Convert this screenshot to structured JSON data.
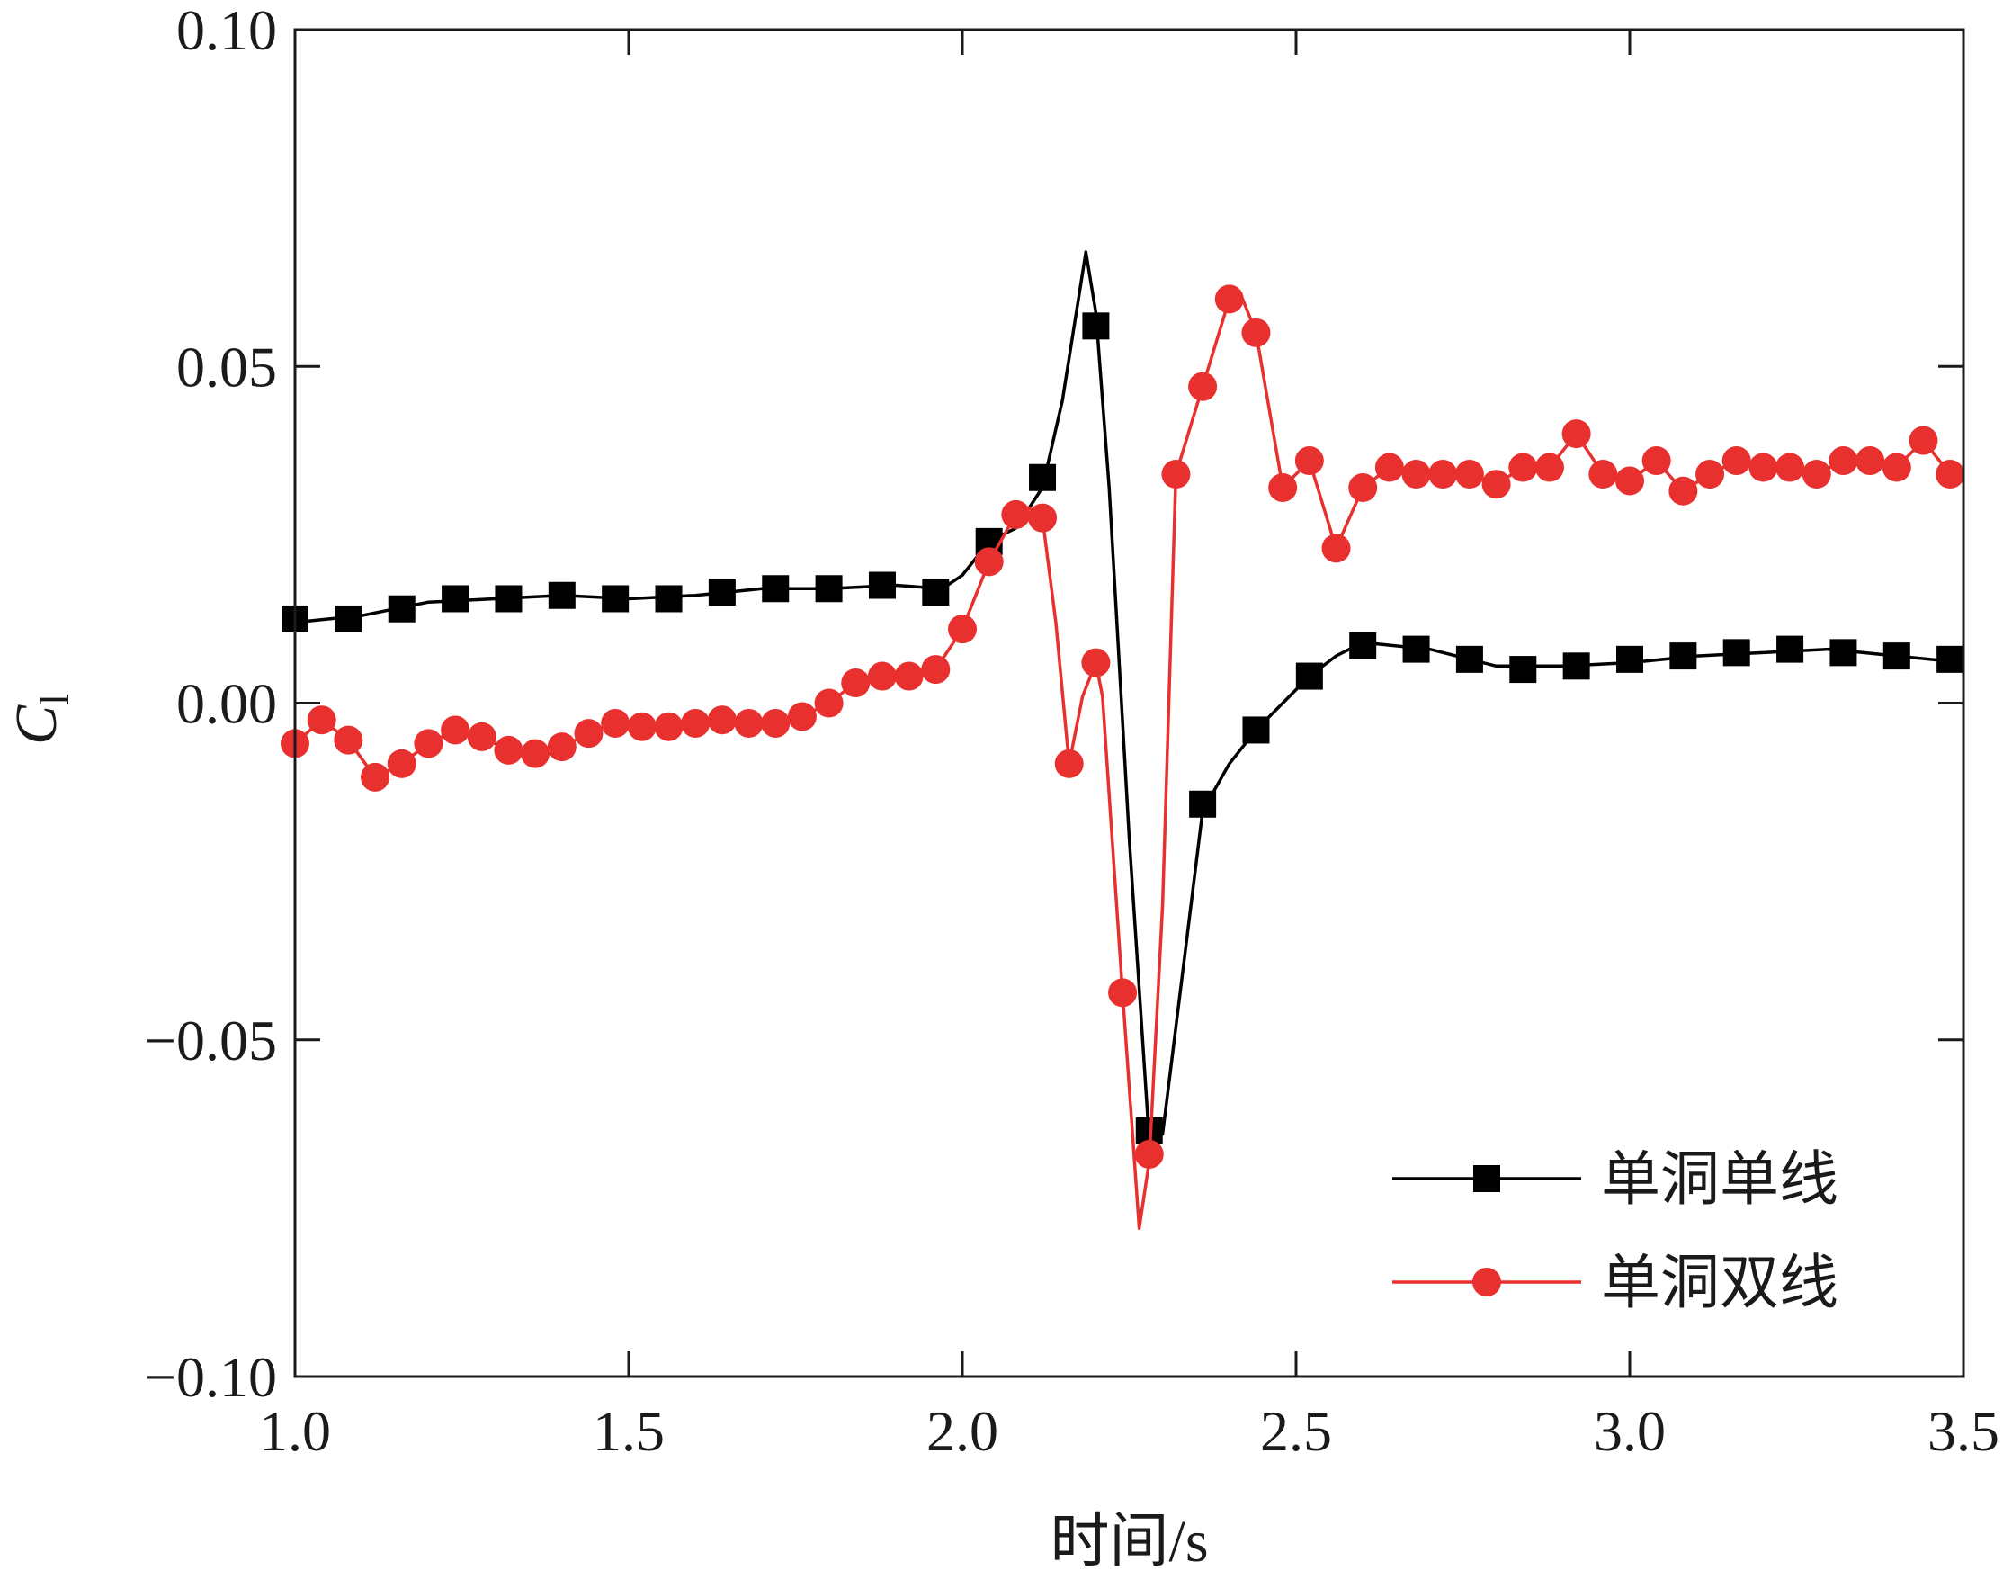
{
  "chart_data": {
    "type": "line",
    "xlabel": "时间/s",
    "ylabel": {
      "main": "C",
      "subscript": "l"
    },
    "xlim": [
      1.0,
      3.5
    ],
    "ylim": [
      -0.1,
      0.1
    ],
    "xticks": [
      1.0,
      1.5,
      2.0,
      2.5,
      3.0,
      3.5
    ],
    "xtick_labels": [
      "1.0",
      "1.5",
      "2.0",
      "2.5",
      "3.0",
      "3.5"
    ],
    "yticks": [
      -0.1,
      -0.05,
      0.0,
      0.05,
      0.1
    ],
    "ytick_labels": [
      "−0.10",
      "−0.05",
      "0.00",
      "0.05",
      "0.10"
    ],
    "grid": false,
    "legend_position": "bottom-right",
    "series": [
      {
        "name": "单洞单线",
        "color": "#000000",
        "marker": "square",
        "line": [
          [
            1.0,
            0.012
          ],
          [
            1.1,
            0.013
          ],
          [
            1.2,
            0.015
          ],
          [
            1.3,
            0.0155
          ],
          [
            1.4,
            0.016
          ],
          [
            1.5,
            0.0155
          ],
          [
            1.6,
            0.016
          ],
          [
            1.7,
            0.017
          ],
          [
            1.8,
            0.017
          ],
          [
            1.9,
            0.0175
          ],
          [
            1.97,
            0.017
          ],
          [
            2.0,
            0.019
          ],
          [
            2.04,
            0.024
          ],
          [
            2.08,
            0.026
          ],
          [
            2.12,
            0.032
          ],
          [
            2.15,
            0.045
          ],
          [
            2.185,
            0.067
          ],
          [
            2.2,
            0.058
          ],
          [
            2.22,
            0.032
          ],
          [
            2.25,
            -0.02
          ],
          [
            2.28,
            -0.065
          ],
          [
            2.3,
            -0.064
          ],
          [
            2.33,
            -0.04
          ],
          [
            2.36,
            -0.016
          ],
          [
            2.4,
            -0.009
          ],
          [
            2.44,
            -0.004
          ],
          [
            2.48,
            0.0
          ],
          [
            2.52,
            0.004
          ],
          [
            2.56,
            0.007
          ],
          [
            2.6,
            0.009
          ],
          [
            2.7,
            0.008
          ],
          [
            2.8,
            0.0055
          ],
          [
            2.9,
            0.0055
          ],
          [
            3.0,
            0.006
          ],
          [
            3.1,
            0.007
          ],
          [
            3.2,
            0.0075
          ],
          [
            3.3,
            0.008
          ],
          [
            3.4,
            0.007
          ],
          [
            3.5,
            0.006
          ]
        ],
        "markers": [
          [
            1.0,
            0.0125
          ],
          [
            1.08,
            0.0125
          ],
          [
            1.16,
            0.014
          ],
          [
            1.24,
            0.0155
          ],
          [
            1.32,
            0.0155
          ],
          [
            1.4,
            0.016
          ],
          [
            1.48,
            0.0155
          ],
          [
            1.56,
            0.0155
          ],
          [
            1.64,
            0.0165
          ],
          [
            1.72,
            0.017
          ],
          [
            1.8,
            0.017
          ],
          [
            1.88,
            0.0175
          ],
          [
            1.96,
            0.0165
          ],
          [
            2.04,
            0.024
          ],
          [
            2.12,
            0.0335
          ],
          [
            2.2,
            0.056
          ],
          [
            2.28,
            -0.0635
          ],
          [
            2.36,
            -0.015
          ],
          [
            2.44,
            -0.004
          ],
          [
            2.52,
            0.004
          ],
          [
            2.6,
            0.0085
          ],
          [
            2.68,
            0.008
          ],
          [
            2.76,
            0.0065
          ],
          [
            2.84,
            0.005
          ],
          [
            2.92,
            0.0055
          ],
          [
            3.0,
            0.0065
          ],
          [
            3.08,
            0.007
          ],
          [
            3.16,
            0.0075
          ],
          [
            3.24,
            0.008
          ],
          [
            3.32,
            0.0075
          ],
          [
            3.4,
            0.007
          ],
          [
            3.48,
            0.0065
          ]
        ]
      },
      {
        "name": "单洞双线",
        "color": "#e8302f",
        "marker": "circle",
        "line": [
          [
            1.0,
            -0.006
          ],
          [
            1.04,
            -0.0025
          ],
          [
            1.08,
            -0.0055
          ],
          [
            1.12,
            -0.011
          ],
          [
            1.16,
            -0.009
          ],
          [
            1.2,
            -0.006
          ],
          [
            1.24,
            -0.004
          ],
          [
            1.28,
            -0.005
          ],
          [
            1.32,
            -0.007
          ],
          [
            1.36,
            -0.0075
          ],
          [
            1.4,
            -0.0065
          ],
          [
            1.44,
            -0.0045
          ],
          [
            1.48,
            -0.003
          ],
          [
            1.52,
            -0.0035
          ],
          [
            1.56,
            -0.0035
          ],
          [
            1.6,
            -0.003
          ],
          [
            1.64,
            -0.0025
          ],
          [
            1.68,
            -0.003
          ],
          [
            1.72,
            -0.003
          ],
          [
            1.76,
            -0.002
          ],
          [
            1.8,
            0.0
          ],
          [
            1.84,
            0.003
          ],
          [
            1.88,
            0.004
          ],
          [
            1.92,
            0.004
          ],
          [
            1.96,
            0.005
          ],
          [
            2.0,
            0.011
          ],
          [
            2.04,
            0.021
          ],
          [
            2.08,
            0.028
          ],
          [
            2.1,
            0.029
          ],
          [
            2.12,
            0.0275
          ],
          [
            2.14,
            0.012
          ],
          [
            2.16,
            -0.009
          ],
          [
            2.18,
            0.001
          ],
          [
            2.2,
            0.006
          ],
          [
            2.21,
            0.001
          ],
          [
            2.24,
            -0.043
          ],
          [
            2.265,
            -0.078
          ],
          [
            2.28,
            -0.068
          ],
          [
            2.3,
            -0.03
          ],
          [
            2.32,
            0.034
          ],
          [
            2.36,
            0.047
          ],
          [
            2.4,
            0.06
          ],
          [
            2.42,
            0.06
          ],
          [
            2.44,
            0.055
          ],
          [
            2.48,
            0.032
          ],
          [
            2.52,
            0.036
          ],
          [
            2.56,
            0.023
          ],
          [
            2.6,
            0.032
          ],
          [
            2.64,
            0.035
          ],
          [
            2.68,
            0.034
          ],
          [
            2.72,
            0.034
          ],
          [
            2.76,
            0.034
          ],
          [
            2.8,
            0.0325
          ],
          [
            2.84,
            0.035
          ],
          [
            2.88,
            0.035
          ],
          [
            2.92,
            0.04
          ],
          [
            2.96,
            0.034
          ],
          [
            3.0,
            0.033
          ],
          [
            3.04,
            0.036
          ],
          [
            3.08,
            0.0315
          ],
          [
            3.12,
            0.034
          ],
          [
            3.16,
            0.036
          ],
          [
            3.2,
            0.035
          ],
          [
            3.24,
            0.035
          ],
          [
            3.28,
            0.034
          ],
          [
            3.32,
            0.036
          ],
          [
            3.36,
            0.036
          ],
          [
            3.4,
            0.035
          ],
          [
            3.44,
            0.039
          ],
          [
            3.48,
            0.034
          ],
          [
            3.5,
            0.033
          ]
        ],
        "markers": [
          [
            1.0,
            -0.006
          ],
          [
            1.04,
            -0.0025
          ],
          [
            1.08,
            -0.0055
          ],
          [
            1.12,
            -0.011
          ],
          [
            1.16,
            -0.009
          ],
          [
            1.2,
            -0.006
          ],
          [
            1.24,
            -0.004
          ],
          [
            1.28,
            -0.005
          ],
          [
            1.32,
            -0.007
          ],
          [
            1.36,
            -0.0075
          ],
          [
            1.4,
            -0.0065
          ],
          [
            1.44,
            -0.0045
          ],
          [
            1.48,
            -0.003
          ],
          [
            1.52,
            -0.0035
          ],
          [
            1.56,
            -0.0035
          ],
          [
            1.6,
            -0.003
          ],
          [
            1.64,
            -0.0025
          ],
          [
            1.68,
            -0.003
          ],
          [
            1.72,
            -0.003
          ],
          [
            1.76,
            -0.002
          ],
          [
            1.8,
            0.0
          ],
          [
            1.84,
            0.003
          ],
          [
            1.88,
            0.004
          ],
          [
            1.92,
            0.004
          ],
          [
            1.96,
            0.005
          ],
          [
            2.0,
            0.011
          ],
          [
            2.04,
            0.021
          ],
          [
            2.08,
            0.028
          ],
          [
            2.12,
            0.0275
          ],
          [
            2.16,
            -0.009
          ],
          [
            2.2,
            0.006
          ],
          [
            2.24,
            -0.043
          ],
          [
            2.28,
            -0.067
          ],
          [
            2.32,
            0.034
          ],
          [
            2.36,
            0.047
          ],
          [
            2.4,
            0.06
          ],
          [
            2.44,
            0.055
          ],
          [
            2.48,
            0.032
          ],
          [
            2.52,
            0.036
          ],
          [
            2.56,
            0.023
          ],
          [
            2.6,
            0.032
          ],
          [
            2.64,
            0.035
          ],
          [
            2.68,
            0.034
          ],
          [
            2.72,
            0.034
          ],
          [
            2.76,
            0.034
          ],
          [
            2.8,
            0.0325
          ],
          [
            2.84,
            0.035
          ],
          [
            2.88,
            0.035
          ],
          [
            2.92,
            0.04
          ],
          [
            2.96,
            0.034
          ],
          [
            3.0,
            0.033
          ],
          [
            3.04,
            0.036
          ],
          [
            3.08,
            0.0315
          ],
          [
            3.12,
            0.034
          ],
          [
            3.16,
            0.036
          ],
          [
            3.2,
            0.035
          ],
          [
            3.24,
            0.035
          ],
          [
            3.28,
            0.034
          ],
          [
            3.32,
            0.036
          ],
          [
            3.36,
            0.036
          ],
          [
            3.4,
            0.035
          ],
          [
            3.44,
            0.039
          ],
          [
            3.48,
            0.034
          ]
        ]
      }
    ]
  }
}
